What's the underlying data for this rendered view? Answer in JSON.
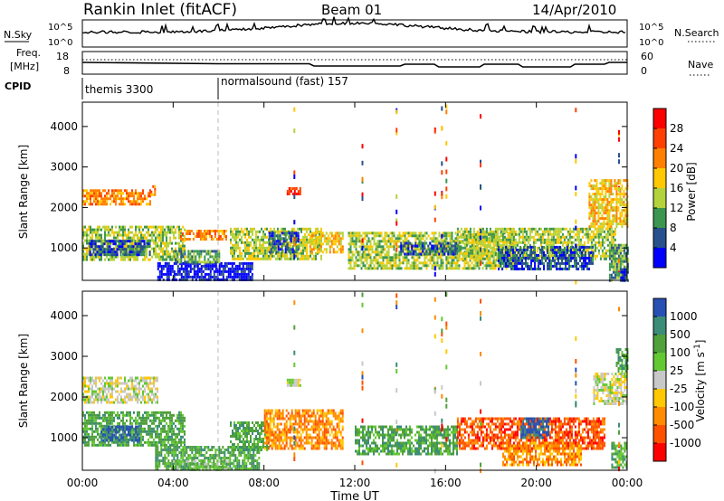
{
  "header": {
    "title": "Rankin Inlet (fitACF)",
    "beam": "Beam 01",
    "date": "14/Apr/2010"
  },
  "panels": {
    "nsky": {
      "left_label": "N.Sky",
      "right_label": "N.Search",
      "ticks": [
        "10^5",
        "10^0"
      ]
    },
    "freq": {
      "left_label_1": "Freq.",
      "left_label_2": "[MHz]",
      "right_label": "Nave",
      "left_ticks": [
        "18",
        "8"
      ],
      "right_ticks": [
        "60",
        "0"
      ]
    },
    "cpid": {
      "label": "CPID",
      "segments": [
        "themis 3300",
        "normalsound (fast) 157"
      ]
    }
  },
  "colors": {
    "frame": "#000000",
    "dashed_divider": "#bbbbbb"
  },
  "chart_data": [
    {
      "type": "heatmap",
      "title": "",
      "ylabel": "Slant Range [km]",
      "y_ticks": [
        "1000",
        "2000",
        "3000",
        "4000"
      ],
      "ylim": [
        200,
        4600
      ],
      "colorbar": {
        "label": "Power [dB]",
        "ticks": [
          "28",
          "24",
          "20",
          "16",
          "12",
          "8",
          "4"
        ],
        "colors": [
          "#ff0000",
          "#ff4000",
          "#ff8000",
          "#ffc800",
          "#b4d23c",
          "#3c9650",
          "#28508c",
          "#0000ff"
        ]
      },
      "data": [
        {
          "x": [
            0.0,
            3.0
          ],
          "y": [
            2050,
            2450
          ],
          "level": 2
        },
        {
          "x": [
            3.0,
            3.2
          ],
          "y": [
            2300,
            2550
          ],
          "level": 2
        },
        {
          "x": [
            0.0,
            4.5
          ],
          "y": [
            700,
            1550
          ],
          "level": 4
        },
        {
          "x": [
            0.3,
            3.0
          ],
          "y": [
            850,
            1200
          ],
          "level": 6
        },
        {
          "x": [
            3.3,
            7.5
          ],
          "y": [
            200,
            650
          ],
          "level": 7
        },
        {
          "x": [
            4.0,
            6.0
          ],
          "y": [
            650,
            950
          ],
          "level": 5
        },
        {
          "x": [
            6.5,
            10.5
          ],
          "y": [
            700,
            1500
          ],
          "level": 4
        },
        {
          "x": [
            8.2,
            9.5
          ],
          "y": [
            900,
            1400
          ],
          "level": 6
        },
        {
          "x": [
            10.0,
            11.5
          ],
          "y": [
            900,
            1400
          ],
          "level": 3
        },
        {
          "x": [
            11.7,
            19.0
          ],
          "y": [
            500,
            1400
          ],
          "level": 4
        },
        {
          "x": [
            14.0,
            16.5
          ],
          "y": [
            850,
            1150
          ],
          "level": 6
        },
        {
          "x": [
            16.5,
            23.5
          ],
          "y": [
            700,
            1500
          ],
          "level": 4
        },
        {
          "x": [
            18.3,
            22.5
          ],
          "y": [
            450,
            1050
          ],
          "level": 6
        },
        {
          "x": [
            22.3,
            24.0
          ],
          "y": [
            1500,
            2700
          ],
          "level": 3
        },
        {
          "x": [
            23.2,
            24.0
          ],
          "y": [
            200,
            1100
          ],
          "level": 5
        },
        {
          "x": [
            23.7,
            24.0
          ],
          "y": [
            200,
            500
          ],
          "level": 7
        },
        {
          "x": [
            9.0,
            9.6
          ],
          "y": [
            2300,
            2500
          ],
          "level": 1
        },
        {
          "x": [
            4.3,
            6.3
          ],
          "y": [
            1200,
            1450
          ],
          "level": 2
        }
      ]
    },
    {
      "type": "heatmap",
      "title": "",
      "ylabel": "Slant Range [km]",
      "xlabel": "Time UT",
      "x_ticks": [
        "00:00",
        "04:00",
        "08:00",
        "12:00",
        "16:00",
        "20:00",
        "00:00"
      ],
      "y_ticks": [
        "1000",
        "2000",
        "3000",
        "4000"
      ],
      "ylim": [
        200,
        4600
      ],
      "colorbar": {
        "label": "Velocity [m s^-1]",
        "ticks": [
          "1000",
          "500",
          "100",
          "25",
          "-25",
          "-100",
          "-500",
          "-1000"
        ],
        "colors": [
          "#2850b4",
          "#3c8c78",
          "#50a03c",
          "#64c832",
          "#c8c8c8",
          "#ffc800",
          "#ff8c00",
          "#ff5000",
          "#ff0000"
        ]
      },
      "data": [
        {
          "x": [
            0.0,
            3.3
          ],
          "y": [
            1850,
            2500
          ],
          "level": 4
        },
        {
          "x": [
            0.0,
            4.5
          ],
          "y": [
            800,
            1650
          ],
          "level": 2
        },
        {
          "x": [
            0.8,
            2.5
          ],
          "y": [
            950,
            1300
          ],
          "level": 0
        },
        {
          "x": [
            3.2,
            7.8
          ],
          "y": [
            200,
            800
          ],
          "level": 2
        },
        {
          "x": [
            4.0,
            6.5
          ],
          "y": [
            200,
            450
          ],
          "level": 3
        },
        {
          "x": [
            6.5,
            8.2
          ],
          "y": [
            700,
            1400
          ],
          "level": 2
        },
        {
          "x": [
            8.0,
            11.5
          ],
          "y": [
            700,
            1700
          ],
          "level": 6
        },
        {
          "x": [
            12.0,
            16.5
          ],
          "y": [
            600,
            1300
          ],
          "level": 2
        },
        {
          "x": [
            16.5,
            23.0
          ],
          "y": [
            700,
            1500
          ],
          "level": 7
        },
        {
          "x": [
            18.5,
            22.0
          ],
          "y": [
            300,
            900
          ],
          "level": 6
        },
        {
          "x": [
            19.3,
            20.5
          ],
          "y": [
            1000,
            1500
          ],
          "level": 0
        },
        {
          "x": [
            22.5,
            24.0
          ],
          "y": [
            1800,
            2600
          ],
          "level": 4
        },
        {
          "x": [
            23.3,
            24.0
          ],
          "y": [
            250,
            900
          ],
          "level": 2
        },
        {
          "x": [
            23.5,
            24.0
          ],
          "y": [
            2600,
            3200
          ],
          "level": 2
        },
        {
          "x": [
            9.0,
            9.6
          ],
          "y": [
            2300,
            2450
          ],
          "level": 4
        }
      ]
    }
  ]
}
